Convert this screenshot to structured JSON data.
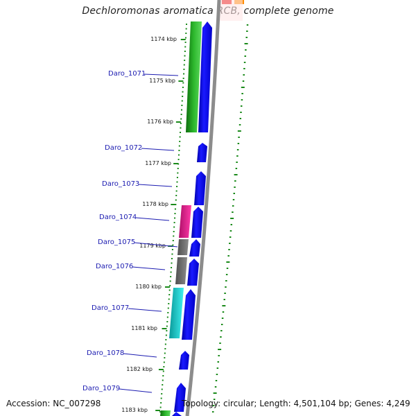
{
  "header": {
    "title": "Dechloromonas aromatica RCB, complete genome"
  },
  "footer": {
    "accession": "Accession: NC_007298",
    "topology": "Topology: circular; Length: 4,501,104 bp; Genes: 4,249"
  },
  "kbp_ticks": [
    "1174 kbp",
    "1175 kbp",
    "1176 kbp",
    "1177 kbp",
    "1178 kbp",
    "1179 kbp",
    "1180 kbp",
    "1181 kbp",
    "1182 kbp",
    "1183 kbp"
  ],
  "gene_labels": [
    "Daro_1071",
    "Daro_1072",
    "Daro_1073",
    "Daro_1074",
    "Daro_1075",
    "Daro_1076",
    "Daro_1077",
    "Daro_1078",
    "Daro_1079"
  ],
  "colors": {
    "cds_blue": "#0000e6",
    "green": "#22a022",
    "magenta": "#e61e8c",
    "gray": "#6e6e6e",
    "cyan": "#18c8c8",
    "backbone": "#8c8c8c",
    "tick_green": "#1a8a1a",
    "label_line": "#1a1ab0"
  }
}
